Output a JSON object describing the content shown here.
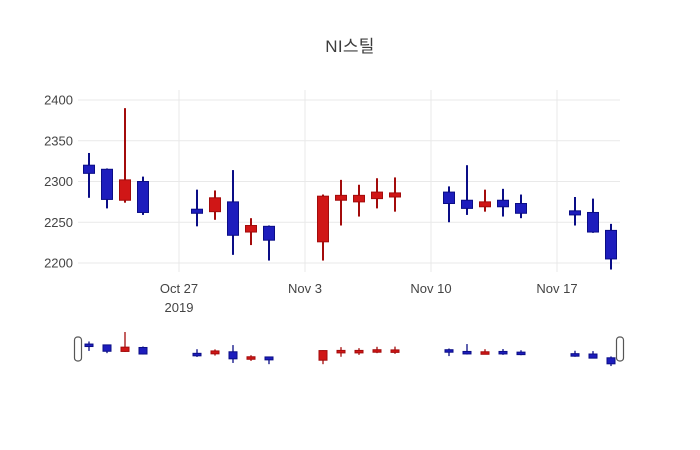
{
  "title": "NI스틸",
  "chart_data": {
    "type": "candlestick",
    "title": "NI스틸",
    "legend_position": "none",
    "grid": true,
    "rangeslider": true,
    "colors": {
      "increasing_fill": "#d01616",
      "increasing_line": "#a30b0b",
      "decreasing_fill": "#1d1dbd",
      "decreasing_line": "#0a0d86",
      "grid": "#e9e9e9",
      "tick_text": "#444444",
      "slider_handle_stroke": "#555555",
      "background": "#ffffff"
    },
    "y_axis": {
      "ticks": [
        2200,
        2250,
        2300,
        2350,
        2400
      ],
      "range": [
        2188,
        2412
      ]
    },
    "x_axis": {
      "ticks": [
        {
          "label": "Oct 27",
          "sublabel": "2019",
          "day": 5
        },
        {
          "label": "Nov 3",
          "sublabel": "",
          "day": 12
        },
        {
          "label": "Nov 10",
          "sublabel": "",
          "day": 19
        },
        {
          "label": "Nov 17",
          "sublabel": "",
          "day": 26
        }
      ]
    },
    "candles": [
      {
        "date": "2019-10-22",
        "day": 0,
        "open": 2320,
        "high": 2335,
        "low": 2280,
        "close": 2310
      },
      {
        "date": "2019-10-23",
        "day": 1,
        "open": 2315,
        "high": 2316,
        "low": 2267,
        "close": 2278
      },
      {
        "date": "2019-10-24",
        "day": 2,
        "open": 2277,
        "high": 2390,
        "low": 2274,
        "close": 2302
      },
      {
        "date": "2019-10-25",
        "day": 3,
        "open": 2300,
        "high": 2306,
        "low": 2259,
        "close": 2262
      },
      {
        "date": "2019-10-28",
        "day": 6,
        "open": 2266,
        "high": 2290,
        "low": 2245,
        "close": 2261
      },
      {
        "date": "2019-10-29",
        "day": 7,
        "open": 2263,
        "high": 2289,
        "low": 2253,
        "close": 2280
      },
      {
        "date": "2019-10-30",
        "day": 8,
        "open": 2275,
        "high": 2314,
        "low": 2210,
        "close": 2234
      },
      {
        "date": "2019-10-31",
        "day": 9,
        "open": 2238,
        "high": 2255,
        "low": 2222,
        "close": 2246
      },
      {
        "date": "2019-11-01",
        "day": 10,
        "open": 2245,
        "high": 2246,
        "low": 2203,
        "close": 2228
      },
      {
        "date": "2019-11-04",
        "day": 13,
        "open": 2226,
        "high": 2284,
        "low": 2203,
        "close": 2282
      },
      {
        "date": "2019-11-05",
        "day": 14,
        "open": 2277,
        "high": 2302,
        "low": 2246,
        "close": 2283
      },
      {
        "date": "2019-11-06",
        "day": 15,
        "open": 2275,
        "high": 2296,
        "low": 2257,
        "close": 2283
      },
      {
        "date": "2019-11-07",
        "day": 16,
        "open": 2279,
        "high": 2304,
        "low": 2267,
        "close": 2287
      },
      {
        "date": "2019-11-08",
        "day": 17,
        "open": 2281,
        "high": 2305,
        "low": 2263,
        "close": 2286
      },
      {
        "date": "2019-11-11",
        "day": 20,
        "open": 2287,
        "high": 2294,
        "low": 2250,
        "close": 2273
      },
      {
        "date": "2019-11-12",
        "day": 21,
        "open": 2277,
        "high": 2320,
        "low": 2259,
        "close": 2267
      },
      {
        "date": "2019-11-13",
        "day": 22,
        "open": 2269,
        "high": 2290,
        "low": 2263,
        "close": 2275
      },
      {
        "date": "2019-11-14",
        "day": 23,
        "open": 2277,
        "high": 2291,
        "low": 2257,
        "close": 2269
      },
      {
        "date": "2019-11-15",
        "day": 24,
        "open": 2273,
        "high": 2284,
        "low": 2255,
        "close": 2261
      },
      {
        "date": "2019-11-18",
        "day": 27,
        "open": 2264,
        "high": 2281,
        "low": 2246,
        "close": 2259
      },
      {
        "date": "2019-11-19",
        "day": 28,
        "open": 2262,
        "high": 2279,
        "low": 2237,
        "close": 2238
      },
      {
        "date": "2019-11-20",
        "day": 29,
        "open": 2240,
        "high": 2248,
        "low": 2192,
        "close": 2205
      }
    ]
  }
}
